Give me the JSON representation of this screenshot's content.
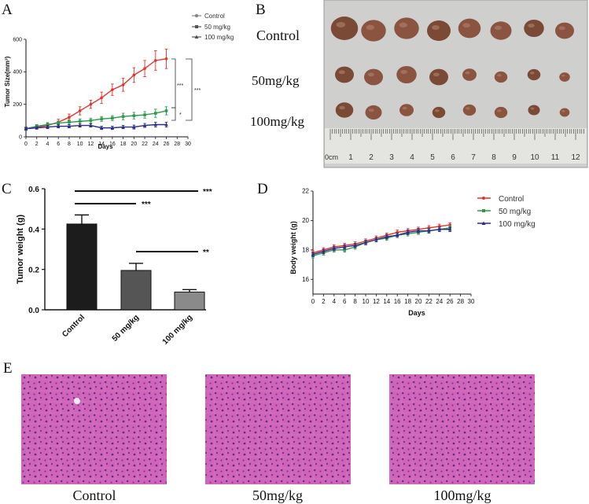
{
  "panel_letters": {
    "a": "A",
    "b": "B",
    "c": "C",
    "d": "D",
    "e": "E"
  },
  "colors": {
    "control": "#e8302a",
    "dose50": "#2e9a4a",
    "dose100": "#2b2b8c",
    "legend_grey": "#888888",
    "he_pink": "#d064b8"
  },
  "chart_data": [
    {
      "id": "A",
      "type": "line",
      "title": "",
      "xlabel": "Days",
      "ylabel": "Tumor Size(mm³)",
      "xlim": [
        0,
        30
      ],
      "ylim": [
        0,
        600
      ],
      "x_ticks": [
        "0",
        "2",
        "4",
        "6",
        "8",
        "10",
        "12",
        "14",
        "16",
        "18",
        "20",
        "22",
        "24",
        "26",
        "28",
        "30"
      ],
      "y_ticks": [
        "0",
        "200",
        "400",
        "600"
      ],
      "legend": [
        "Control",
        "50 mg/kg",
        "100 mg/kg"
      ],
      "series": [
        {
          "name": "Control",
          "x": [
            0,
            2,
            4,
            6,
            8,
            10,
            12,
            14,
            16,
            18,
            20,
            22,
            24,
            26
          ],
          "values": [
            50,
            60,
            70,
            90,
            120,
            160,
            200,
            240,
            290,
            320,
            380,
            420,
            470,
            480
          ],
          "err": [
            10,
            12,
            15,
            18,
            20,
            25,
            25,
            35,
            35,
            40,
            45,
            50,
            60,
            60
          ]
        },
        {
          "name": "50 mg/kg",
          "x": [
            0,
            2,
            4,
            6,
            8,
            10,
            12,
            14,
            16,
            18,
            20,
            22,
            24,
            26
          ],
          "values": [
            50,
            65,
            75,
            85,
            90,
            95,
            100,
            110,
            115,
            125,
            130,
            135,
            145,
            160
          ],
          "err": [
            10,
            10,
            12,
            12,
            15,
            15,
            15,
            15,
            15,
            20,
            20,
            20,
            25,
            25
          ]
        },
        {
          "name": "100 mg/kg",
          "x": [
            0,
            2,
            4,
            6,
            8,
            10,
            12,
            14,
            16,
            18,
            20,
            22,
            24,
            26
          ],
          "values": [
            50,
            55,
            60,
            65,
            65,
            70,
            70,
            55,
            55,
            60,
            60,
            70,
            75,
            75
          ],
          "err": [
            8,
            8,
            10,
            10,
            10,
            10,
            10,
            10,
            10,
            10,
            12,
            12,
            15,
            15
          ]
        }
      ],
      "significance": [
        {
          "label": "***",
          "between": "Control vs 50 mg/kg"
        },
        {
          "label": "*",
          "between": "50 mg/kg vs 100 mg/kg"
        },
        {
          "label": "***",
          "between": "Control vs 100 mg/kg"
        }
      ]
    },
    {
      "id": "C",
      "type": "bar",
      "title": "",
      "xlabel": "",
      "ylabel": "Tumor weight (g)",
      "categories": [
        "Control",
        "50 mg/kg",
        "100 mg/kg"
      ],
      "values": [
        0.425,
        0.195,
        0.088
      ],
      "err": [
        0.045,
        0.035,
        0.012
      ],
      "bar_colors": [
        "#1c1c1c",
        "#555555",
        "#8a8a8a"
      ],
      "ylim": [
        0,
        0.6
      ],
      "y_ticks": [
        "0.0",
        "0.2",
        "0.4",
        "0.6"
      ],
      "significance": [
        {
          "label": "***",
          "between": "Control vs 100 mg/kg"
        },
        {
          "label": "***",
          "between": "Control vs 50 mg/kg"
        },
        {
          "label": "**",
          "between": "50 mg/kg vs 100 mg/kg"
        }
      ]
    },
    {
      "id": "D",
      "type": "line",
      "title": "",
      "xlabel": "Days",
      "ylabel": "Body weight (g)",
      "xlim": [
        0,
        30
      ],
      "ylim": [
        15,
        22
      ],
      "x_ticks": [
        "0",
        "2",
        "4",
        "6",
        "8",
        "10",
        "12",
        "14",
        "16",
        "18",
        "20",
        "22",
        "24",
        "26",
        "28",
        "30"
      ],
      "y_ticks": [
        "16",
        "18",
        "20",
        "22"
      ],
      "legend": [
        "Control",
        "50 mg/kg",
        "100 mg/kg"
      ],
      "series": [
        {
          "name": "Control",
          "x": [
            0,
            2,
            4,
            6,
            8,
            10,
            12,
            14,
            16,
            18,
            20,
            22,
            24,
            26
          ],
          "values": [
            17.8,
            18.0,
            18.2,
            18.3,
            18.4,
            18.6,
            18.8,
            19.0,
            19.2,
            19.3,
            19.4,
            19.5,
            19.6,
            19.7
          ],
          "err": [
            0.15,
            0.15,
            0.15,
            0.15,
            0.15,
            0.15,
            0.15,
            0.15,
            0.15,
            0.15,
            0.15,
            0.15,
            0.15,
            0.15
          ]
        },
        {
          "name": "50 mg/kg",
          "x": [
            0,
            2,
            4,
            6,
            8,
            10,
            12,
            14,
            16,
            18,
            20,
            22,
            24,
            26
          ],
          "values": [
            17.6,
            17.8,
            18.0,
            18.0,
            18.2,
            18.5,
            18.7,
            18.8,
            19.0,
            19.1,
            19.2,
            19.3,
            19.4,
            19.5
          ],
          "err": [
            0.15,
            0.15,
            0.15,
            0.15,
            0.15,
            0.15,
            0.15,
            0.15,
            0.15,
            0.15,
            0.15,
            0.15,
            0.15,
            0.15
          ]
        },
        {
          "name": "100 mg/kg",
          "x": [
            0,
            2,
            4,
            6,
            8,
            10,
            12,
            14,
            16,
            18,
            20,
            22,
            24,
            26
          ],
          "values": [
            17.7,
            17.9,
            18.1,
            18.2,
            18.3,
            18.5,
            18.7,
            18.9,
            19.0,
            19.2,
            19.3,
            19.3,
            19.4,
            19.4
          ],
          "err": [
            0.15,
            0.15,
            0.15,
            0.15,
            0.15,
            0.15,
            0.15,
            0.15,
            0.15,
            0.15,
            0.15,
            0.15,
            0.15,
            0.15
          ]
        }
      ]
    }
  ],
  "panel_b": {
    "row_labels": [
      "Control",
      "50mg/kg",
      "100mg/kg"
    ],
    "ruler_unit": "0cm",
    "ruler_numbers": [
      "1",
      "2",
      "3",
      "4",
      "5",
      "6",
      "7",
      "8",
      "9",
      "10",
      "11",
      "12"
    ]
  },
  "panel_e": {
    "labels": [
      "Control",
      "50mg/kg",
      "100mg/kg"
    ]
  }
}
